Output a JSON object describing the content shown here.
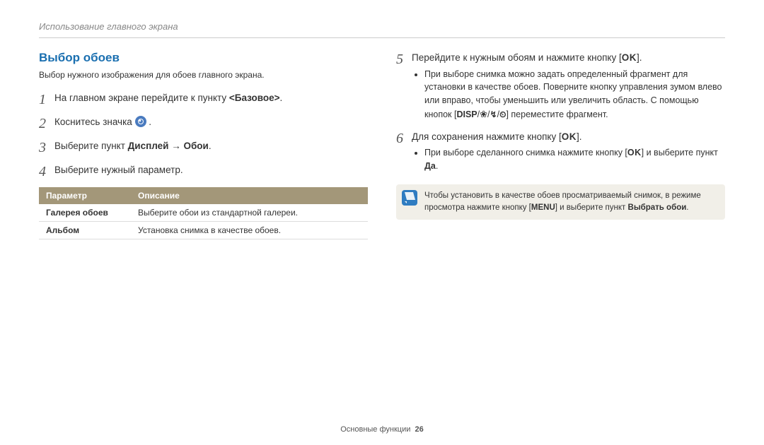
{
  "breadcrumb": "Использование главного экрана",
  "left": {
    "title": "Выбор обоев",
    "subtitle": "Выбор нужного изображения для обоев главного экрана.",
    "steps": [
      {
        "n": "1",
        "html": "На главном экране перейдите к пункту <strong>&lt;Базовое&gt;</strong>."
      },
      {
        "n": "2",
        "html": "Коснитесь значка <span class=\"circle-icon\" data-name=\"settings-circle-icon\" data-interactable=\"false\"></span> ."
      },
      {
        "n": "3",
        "html": "Выберите пункт <strong>Дисплей</strong> → <strong>Обои</strong>."
      },
      {
        "n": "4",
        "html": "Выберите нужный параметр."
      }
    ],
    "table": {
      "headers": [
        "Параметр",
        "Описание"
      ],
      "rows": [
        [
          "Галерея обоев",
          "Выберите обои из стандартной галереи."
        ],
        [
          "Альбом",
          "Установка снимка в качестве обоев."
        ]
      ]
    }
  },
  "right": {
    "steps": [
      {
        "n": "5",
        "html": "Перейдите к нужным обоям и нажмите кнопку [<span class=\"ok-glyph\">OK</span>].",
        "bullets": [
          "При выборе снимка можно задать определенный фрагмент для установки в качестве обоев. Поверните кнопку управления зумом   влево или вправо, чтобы уменьшить или увеличить область. С помощью кнопок [<span class=\"disp-glyph\">DISP</span>/<span class=\"flower\">❀</span>/<span class=\"glyph\">↯</span>/<span class=\"glyph\">⏲</span>] переместите фрагмент."
        ]
      },
      {
        "n": "6",
        "html": "Для сохранения нажмите кнопку [<span class=\"ok-glyph\">OK</span>].",
        "bullets": [
          "При выборе сделанного снимка нажмите кнопку [<span class=\"ok-glyph\">OK</span>] и выберите пункт <strong>Да</strong>."
        ]
      }
    ],
    "note": "Чтобы установить в качестве обоев просматриваемый снимок, в режиме просмотра нажмите кнопку [<strong>MENU</strong>] и выберите пункт <strong>Выбрать обои</strong>."
  },
  "footer": {
    "section": "Основные функции",
    "page": "26"
  }
}
